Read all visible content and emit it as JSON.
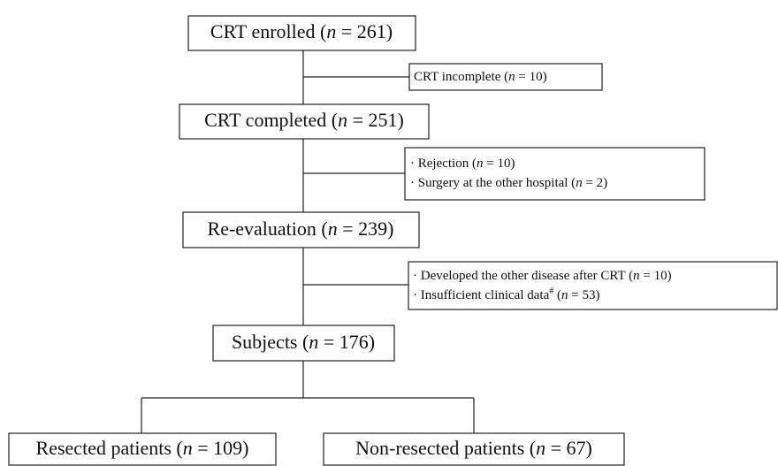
{
  "nodes": [
    {
      "label": "CRT enrolled (n = 261)"
    },
    {
      "label": "CRT completed (n = 251)"
    },
    {
      "label": "Re-evaluation (n = 239)"
    },
    {
      "label": "Subjects (n = 176)"
    },
    {
      "label": "Resected patients (n = 109)"
    },
    {
      "label": "Non-resected patients (n = 67)"
    }
  ],
  "exclusions": [
    {
      "lines": [
        "CRT incomplete (n = 10)"
      ]
    },
    {
      "lines": [
        "· Rejection (n = 10)",
        "· Surgery at the other hospital (n = 2)"
      ]
    },
    {
      "lines": [
        "· Developed the other disease after CRT (n = 10)",
        "· Insufficient clinical data# (n = 53)"
      ]
    }
  ]
}
